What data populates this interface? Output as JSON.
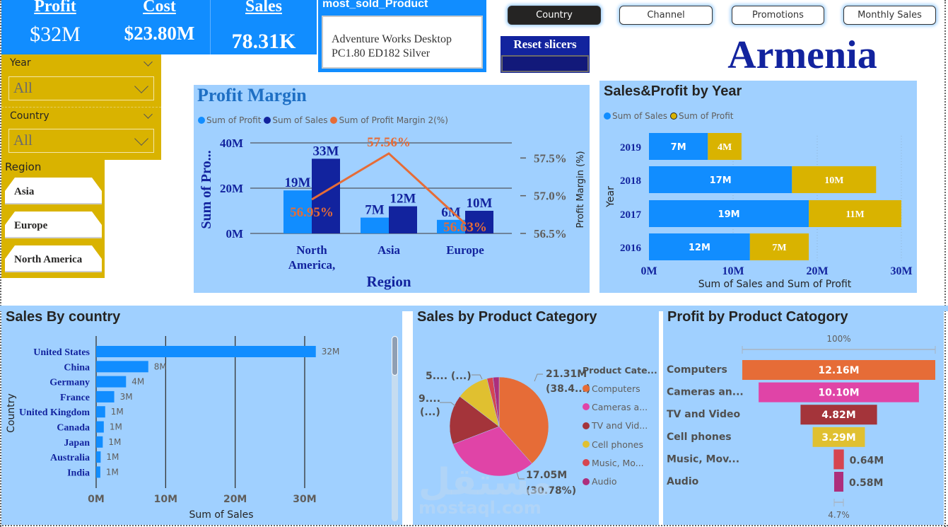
{
  "kpis": {
    "profit": {
      "label": "Profit",
      "value": "$32M"
    },
    "cost": {
      "label": "Cost",
      "value": "$23.80M"
    },
    "sales": {
      "label": "Sales",
      "value": "78.31K"
    }
  },
  "most_sold_product": {
    "title": "most_sold_Product",
    "line1": "Adventure Works Desktop",
    "line2": "PC1.80 ED182 Silver"
  },
  "nav": {
    "buttons": [
      {
        "label": "Country",
        "active": true
      },
      {
        "label": "Channel",
        "active": false
      },
      {
        "label": "Promotions",
        "active": false
      },
      {
        "label": "Monthly Sales",
        "active": false
      }
    ],
    "reset_label": "Reset slicers"
  },
  "selected_country": "Armenia",
  "slicers": {
    "year": {
      "label": "Year",
      "value": "All"
    },
    "country": {
      "label": "Country",
      "value": "All"
    },
    "region": {
      "label": "Region",
      "options": [
        "Asia",
        "Europe",
        "North America"
      ]
    }
  },
  "colors": {
    "accent_blue": "#118DFF",
    "dark_blue": "#12239E",
    "gold": "#D9B300",
    "orange": "#E66C37",
    "panel_bg": "#A0D0FF"
  },
  "chart_data": [
    {
      "id": "profit_margin",
      "type": "bar",
      "title": "Profit Margin",
      "legend": [
        "Sum of Profit",
        "Sum of Sales",
        "Sum of Profit Margin 2(%)"
      ],
      "categories": [
        "North America,",
        "Asia",
        "Europe"
      ],
      "category_labels": [
        [
          "North",
          "America,"
        ],
        [
          "Asia"
        ],
        [
          "Europe"
        ]
      ],
      "series": [
        {
          "name": "Sum of Profit",
          "values": [
            19,
            7,
            6
          ],
          "labels": [
            "19M",
            "7M",
            "6M"
          ],
          "color": "#118DFF"
        },
        {
          "name": "Sum of Sales",
          "values": [
            33,
            12,
            10
          ],
          "labels": [
            "33M",
            "12M",
            "10M"
          ],
          "color": "#12239E"
        },
        {
          "name": "Sum of Profit Margin 2(%)",
          "type": "line",
          "axis": "right",
          "values": [
            56.95,
            57.56,
            56.63
          ],
          "labels": [
            "56.95%",
            "57.56%",
            "56.63%"
          ],
          "color": "#E66C37"
        }
      ],
      "xlabel": "Region",
      "ylabel": "Sum of Pro...",
      "y2label": "Profit Margin (%)",
      "ylim": [
        0,
        40
      ],
      "yticks": [
        "0M",
        "20M",
        "40M"
      ],
      "y2lim": [
        56.5,
        57.7
      ],
      "y2ticks": [
        "56.5%",
        "57.0%",
        "57.5%"
      ],
      "y2tick_values": [
        56.5,
        57.0,
        57.5
      ],
      "legend_position": "top-left",
      "grid": true
    },
    {
      "id": "sales_profit_by_year",
      "type": "bar",
      "orientation": "horizontal-stacked",
      "title": "Sales&Profit by Year",
      "legend": [
        "Sum of Sales",
        "Sum of Profit"
      ],
      "categories": [
        "2019",
        "2018",
        "2017",
        "2016"
      ],
      "series": [
        {
          "name": "Sum of Sales",
          "values": [
            7,
            17,
            19,
            12
          ],
          "labels": [
            "7M",
            "17M",
            "19M",
            "12M"
          ],
          "color": "#118DFF"
        },
        {
          "name": "Sum of Profit",
          "values": [
            4,
            10,
            11,
            7
          ],
          "labels": [
            "4M",
            "10M",
            "11M",
            "7M"
          ],
          "color": "#D9B300"
        }
      ],
      "xlabel": "Sum of Sales and Sum of Profit",
      "ylabel": "Year",
      "xlim": [
        0,
        30
      ],
      "xticks": [
        "0M",
        "10M",
        "20M",
        "30M"
      ],
      "legend_position": "top-left"
    },
    {
      "id": "sales_by_country",
      "type": "bar",
      "orientation": "horizontal",
      "title": "Sales By country",
      "categories": [
        "United States",
        "China",
        "Germany",
        "France",
        "United Kingdom",
        "Canada",
        "Japan",
        "Australia",
        "India"
      ],
      "values": [
        31.6,
        7.5,
        4.3,
        2.6,
        1.3,
        1.1,
        0.95,
        0.65,
        0.6
      ],
      "labels": [
        "32M",
        "8M",
        "4M",
        "3M",
        "1M",
        "1M",
        "1M",
        "1M",
        "1M"
      ],
      "xlabel": "Sum of Sales",
      "ylabel": "Country",
      "xlim": [
        0,
        35
      ],
      "xticks": [
        "0M",
        "10M",
        "20M",
        "30M"
      ],
      "xtick_values": [
        0,
        10,
        20,
        30
      ],
      "color": "#118DFF"
    },
    {
      "id": "sales_by_product_category",
      "type": "pie",
      "title": "Sales by Product Category",
      "legend_title": "Product Cate...",
      "legend_position": "right",
      "slices": [
        {
          "name": "Computers",
          "legend": "Computers",
          "value": 21.31,
          "percent": 38.4,
          "color": "#E66C37"
        },
        {
          "name": "Cameras and camcorders",
          "legend": "Cameras a...",
          "value": 17.05,
          "percent": 30.78,
          "color": "#E044A7"
        },
        {
          "name": "TV and Video",
          "legend": "TV and Vid...",
          "value": 9.0,
          "percent": 16.2,
          "color": "#A4343A"
        },
        {
          "name": "Cell phones",
          "legend": "Cell phones",
          "value": 5.9,
          "percent": 10.6,
          "color": "#E0C030"
        },
        {
          "name": "Music, Movies and Audio Books",
          "legend": "Music, Mo...",
          "value": 1.1,
          "percent": 2.0,
          "color": "#D64550"
        },
        {
          "name": "Audio",
          "legend": "Audio",
          "value": 1.1,
          "percent": 2.0,
          "color": "#AD2E7C"
        }
      ],
      "data_labels": [
        {
          "line1": "21.31M",
          "line2": "(38.4...)"
        },
        {
          "line1": "17.05M",
          "line2": "(30.78%)"
        },
        {
          "line1": "9....",
          "line2": "(...)"
        },
        {
          "line1": "5.... (...)",
          "line2": ""
        }
      ]
    },
    {
      "id": "profit_by_product_category",
      "type": "bar",
      "orientation": "funnel",
      "title": "Profit by Product Catogory",
      "categories": [
        "Computers",
        "Cameras an...",
        "TV and Video",
        "Cell phones",
        "Music, Mov...",
        "Audio"
      ],
      "values": [
        12.16,
        10.1,
        4.82,
        3.29,
        0.64,
        0.58
      ],
      "labels": [
        "12.16M",
        "10.10M",
        "4.82M",
        "3.29M",
        "0.64M",
        "0.58M"
      ],
      "colors": [
        "#E66C37",
        "#E044A7",
        "#A4343A",
        "#E0C030",
        "#D64550",
        "#AD2E7C"
      ],
      "top_percent_label": "100%",
      "bottom_percent_label": "4.7%"
    }
  ],
  "watermark": {
    "arabic": "مستقل",
    "latin": "mostaql.com"
  }
}
